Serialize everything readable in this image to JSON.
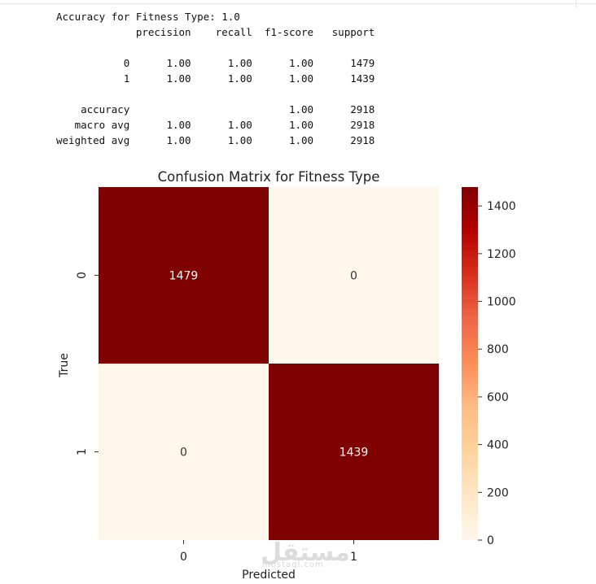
{
  "report": {
    "accuracy_line": "Accuracy for Fitness Type: 1.0",
    "headers": [
      "precision",
      "recall",
      "f1-score",
      "support"
    ],
    "rows": [
      {
        "label": "0",
        "precision": "1.00",
        "recall": "1.00",
        "f1": "1.00",
        "support": "1479"
      },
      {
        "label": "1",
        "precision": "1.00",
        "recall": "1.00",
        "f1": "1.00",
        "support": "1439"
      }
    ],
    "summary": [
      {
        "label": "accuracy",
        "precision": "",
        "recall": "",
        "f1": "1.00",
        "support": "2918"
      },
      {
        "label": "macro avg",
        "precision": "1.00",
        "recall": "1.00",
        "f1": "1.00",
        "support": "2918"
      },
      {
        "label": "weighted avg",
        "precision": "1.00",
        "recall": "1.00",
        "f1": "1.00",
        "support": "2918"
      }
    ]
  },
  "chart_data": {
    "type": "heatmap",
    "title": "Confusion Matrix for Fitness Type",
    "xlabel": "Predicted",
    "ylabel": "True",
    "x_categories": [
      "0",
      "1"
    ],
    "y_categories": [
      "0",
      "1"
    ],
    "matrix": [
      [
        1479,
        0
      ],
      [
        0,
        1439
      ]
    ],
    "colormap": "OrRd",
    "colorbar": {
      "range": [
        0,
        1479
      ],
      "ticks": [
        0,
        200,
        400,
        600,
        800,
        1000,
        1200,
        1400
      ]
    },
    "colors": {
      "low": "#fff7ec",
      "high": "#7f0000",
      "annotation_on_dark": "#ffffff",
      "annotation_on_light": "#333333"
    }
  },
  "watermark": {
    "text": "مستقل",
    "sub": "mostaql.com"
  }
}
